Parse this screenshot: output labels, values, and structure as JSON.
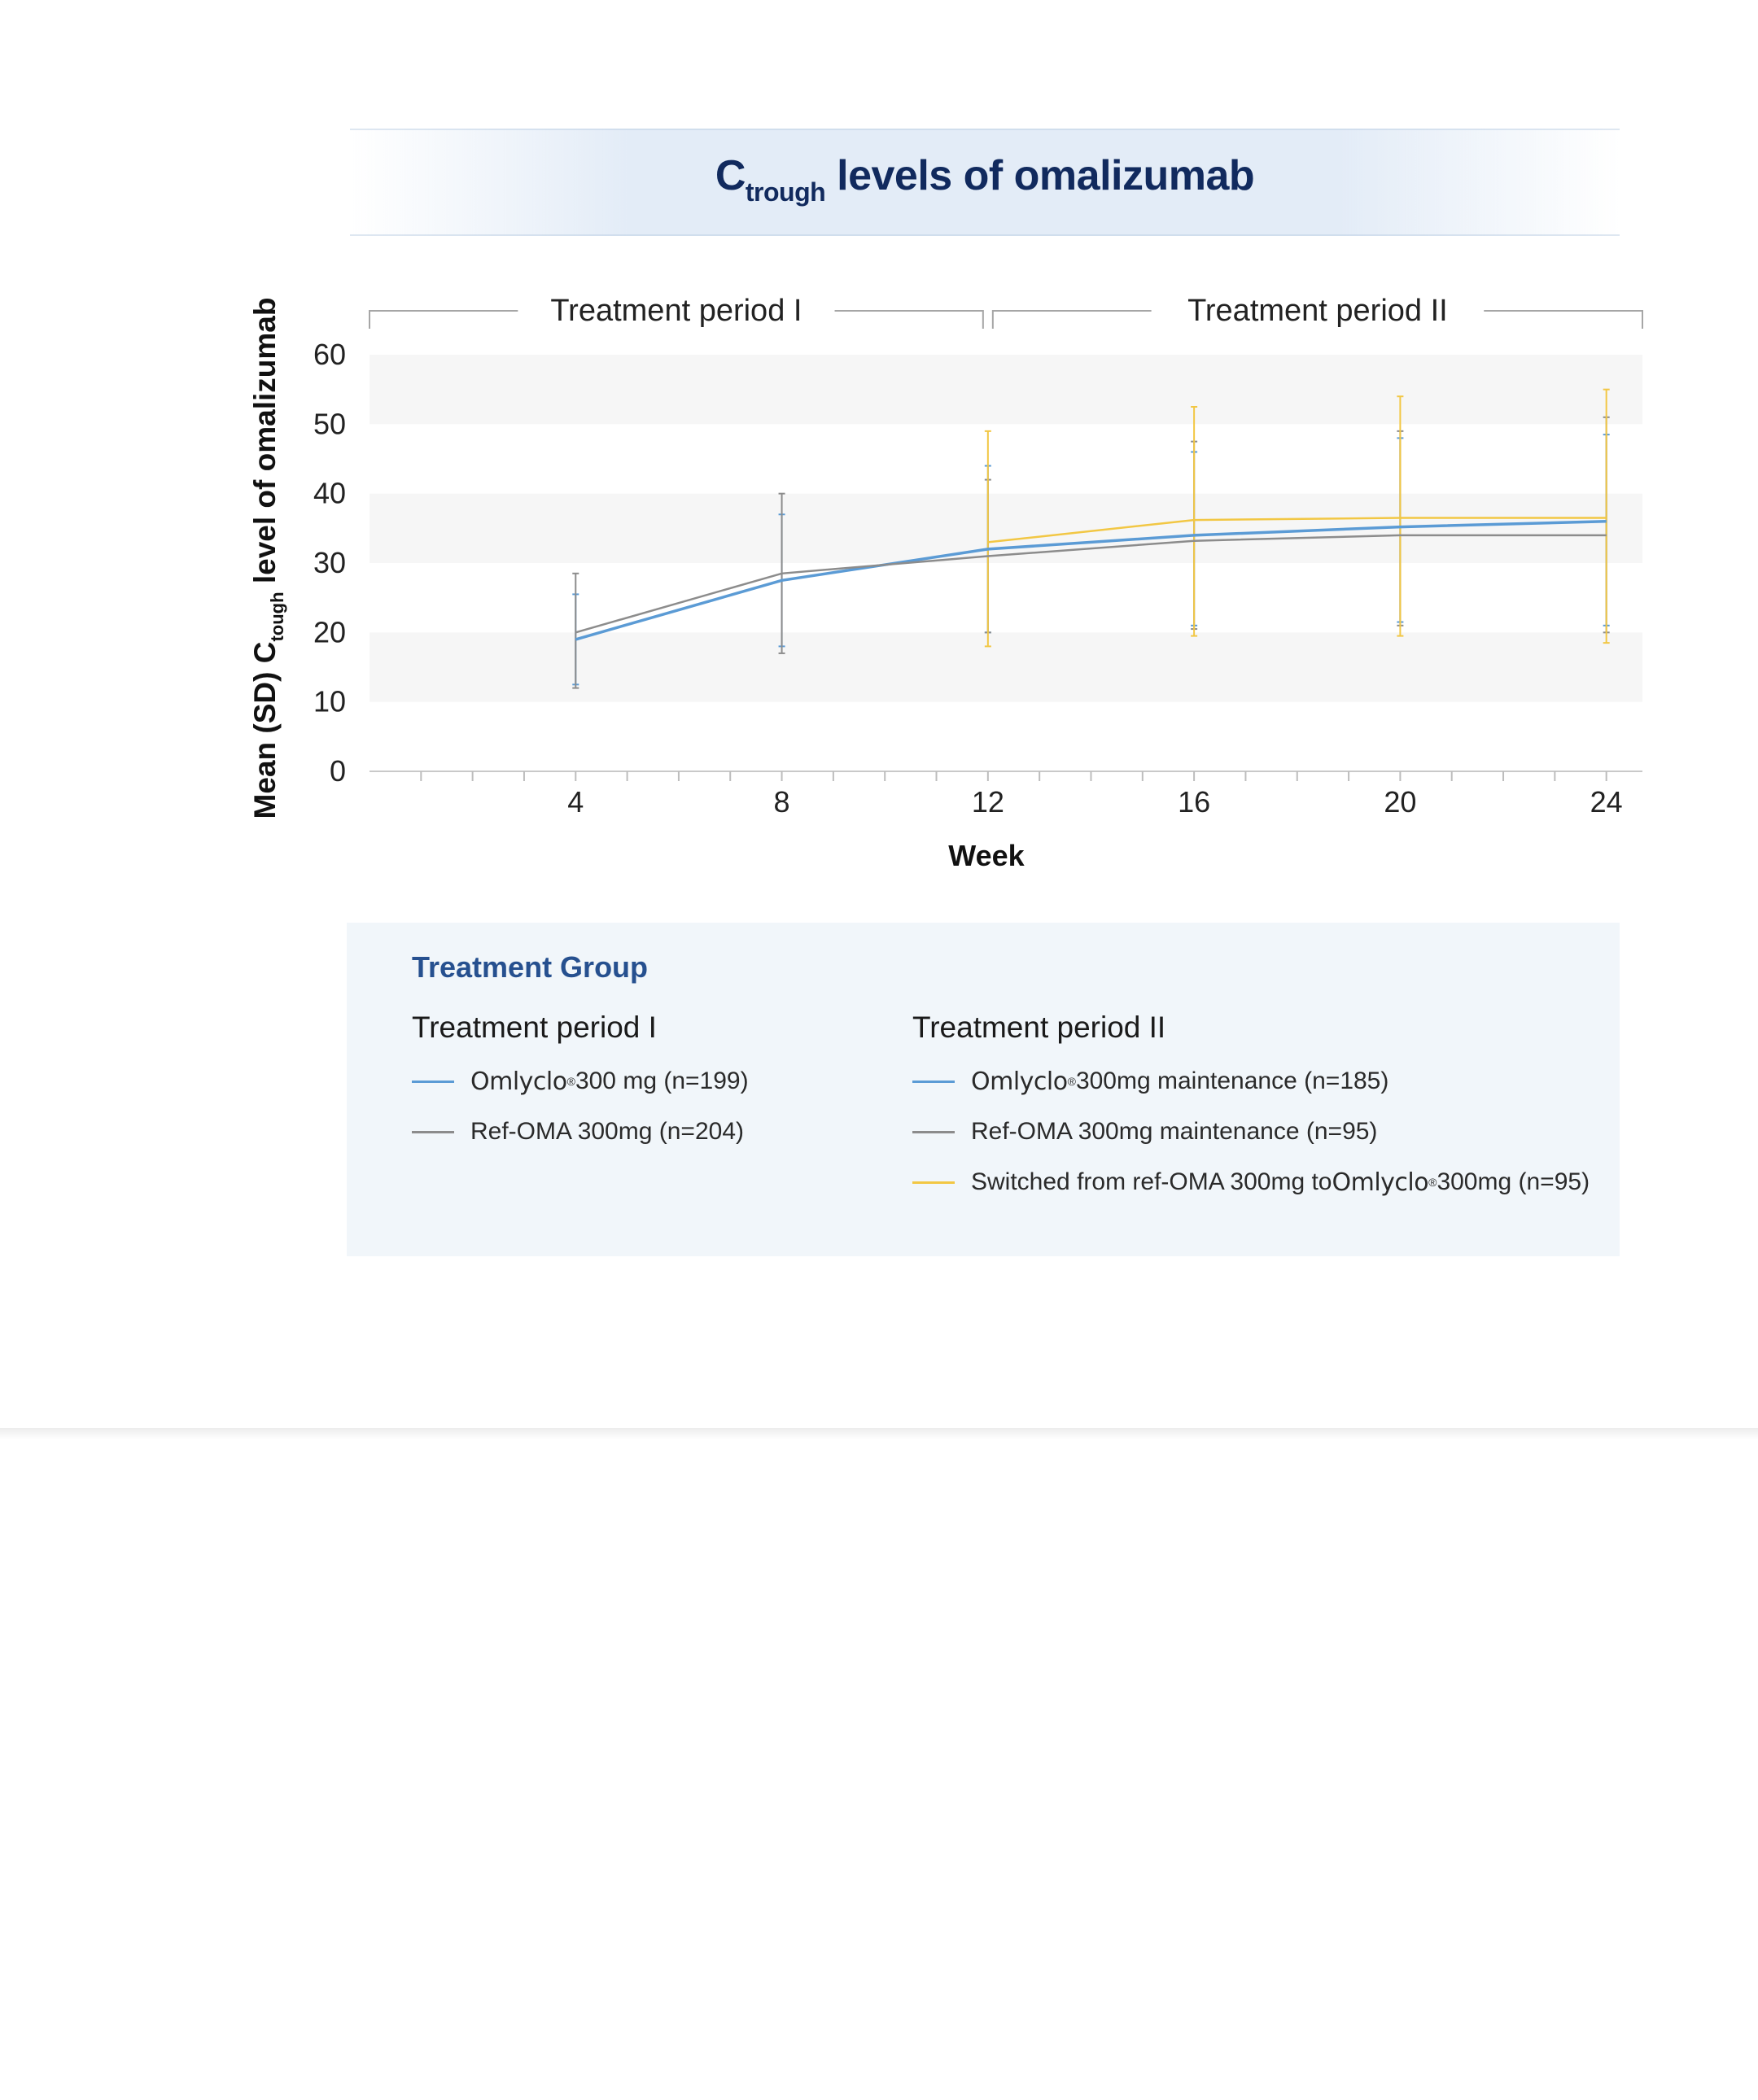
{
  "title": {
    "main": "C",
    "sub": "trough",
    "rest": " levels of omalizumab"
  },
  "chart_data": {
    "type": "line",
    "xlabel": "Week",
    "ylabel": {
      "prefix": "Mean (SD) C",
      "sub": "tough",
      "suffix": " level of omalizumab"
    },
    "xlim": [
      0,
      24.7
    ],
    "ylim": [
      0,
      60
    ],
    "x_ticks": [
      4,
      8,
      12,
      16,
      20,
      24
    ],
    "y_ticks": [
      0,
      10,
      20,
      30,
      40,
      50,
      60
    ],
    "periods": [
      {
        "label": "Treatment period I",
        "x_start": 0,
        "x_end": 12
      },
      {
        "label": "Treatment period II",
        "x_start": 12,
        "x_end": 24.7
      }
    ],
    "series": [
      {
        "key": "omlyclo",
        "color": "#5b9bd5",
        "points": [
          [
            4,
            19
          ],
          [
            8,
            27.5
          ],
          [
            12,
            32
          ],
          [
            16,
            34
          ],
          [
            20,
            35.2
          ],
          [
            24,
            36
          ]
        ],
        "errors": [
          [
            4,
            12.5,
            25.5
          ],
          [
            8,
            18,
            37
          ],
          [
            12,
            20,
            44
          ],
          [
            16,
            21,
            46
          ],
          [
            20,
            21.5,
            48
          ],
          [
            24,
            21,
            48.5
          ]
        ]
      },
      {
        "key": "refoma",
        "color": "#8c8c8c",
        "points": [
          [
            4,
            20
          ],
          [
            8,
            28.5
          ],
          [
            12,
            31
          ],
          [
            16,
            33.2
          ],
          [
            20,
            34
          ],
          [
            24,
            34
          ]
        ],
        "errors": [
          [
            4,
            12,
            28.5
          ],
          [
            8,
            17,
            40
          ],
          [
            12,
            20,
            42
          ],
          [
            16,
            20.5,
            47.5
          ],
          [
            20,
            21,
            49
          ],
          [
            24,
            20,
            51
          ]
        ]
      },
      {
        "key": "switched",
        "color": "#f2c744",
        "points": [
          [
            12,
            33
          ],
          [
            16,
            36.2
          ],
          [
            20,
            36.5
          ],
          [
            24,
            36.5
          ]
        ],
        "errors": [
          [
            12,
            18,
            49
          ],
          [
            16,
            19.5,
            52.5
          ],
          [
            20,
            19.5,
            54
          ],
          [
            24,
            18.5,
            55
          ]
        ]
      }
    ]
  },
  "legend": {
    "heading": "Treatment Group",
    "col1": {
      "title": "Treatment period I",
      "items": [
        {
          "brand": "Omlyclo",
          "reg": "®",
          "text": " 300 mg (n=199)",
          "color": "#5b9bd5"
        },
        {
          "brand": "",
          "reg": "",
          "text": "Ref-OMA 300mg (n=204)",
          "color": "#8c8c8c"
        }
      ]
    },
    "col2": {
      "title": "Treatment period II",
      "items": [
        {
          "pre": "",
          "brand": "Omlyclo",
          "reg": "®",
          "text": " 300mg maintenance (n=185)",
          "color": "#5b9bd5"
        },
        {
          "pre": "Ref-OMA 300mg maintenance (n=95)",
          "brand": "",
          "reg": "",
          "text": "",
          "color": "#8c8c8c"
        },
        {
          "pre": "Switched from ref-OMA 300mg to ",
          "brand": "Omlyclo",
          "reg": "®",
          "text": " 300mg (n=95)",
          "color": "#f2c744"
        }
      ]
    }
  }
}
